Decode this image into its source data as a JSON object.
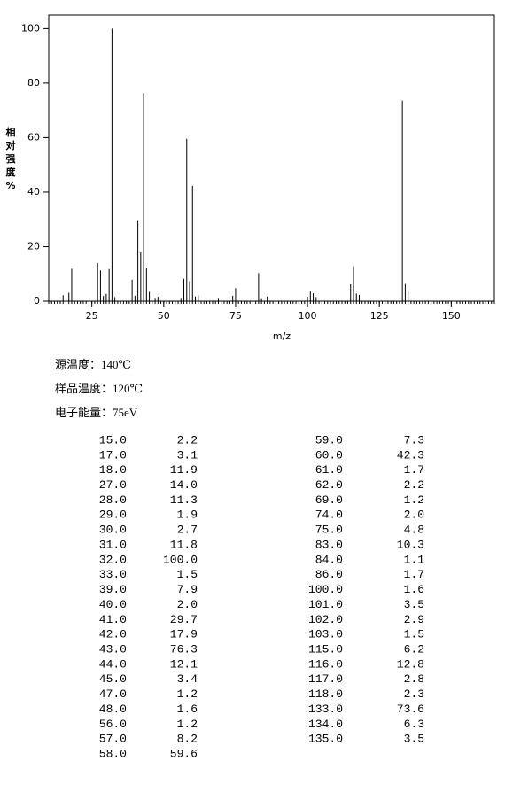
{
  "chart_data": {
    "type": "stem",
    "ylabel": "相对强度%",
    "xlabel": "m/z",
    "color": "#000000",
    "x": [
      15,
      17,
      18,
      27,
      28,
      29,
      30,
      31,
      32,
      33,
      39,
      40,
      41,
      42,
      43,
      44,
      45,
      47,
      48,
      56,
      57,
      58,
      59,
      60,
      61,
      62,
      69,
      74,
      75,
      83,
      84,
      86,
      100,
      101,
      102,
      103,
      115,
      116,
      117,
      118,
      133,
      134,
      135
    ],
    "values": [
      2.2,
      3.1,
      11.9,
      14.0,
      11.3,
      1.9,
      2.7,
      11.8,
      100.0,
      1.5,
      7.9,
      2.0,
      29.7,
      17.9,
      76.3,
      12.1,
      3.4,
      1.2,
      1.6,
      1.2,
      8.2,
      59.6,
      7.3,
      42.3,
      1.7,
      2.2,
      1.2,
      2.0,
      4.8,
      10.3,
      1.1,
      1.7,
      1.6,
      3.5,
      2.9,
      1.5,
      6.2,
      12.8,
      2.8,
      2.3,
      73.6,
      6.3,
      3.5
    ],
    "xlim": [
      10,
      165
    ],
    "ylim": [
      0,
      105
    ],
    "xticks": [
      25,
      50,
      75,
      100,
      125,
      150
    ],
    "yticks": [
      0,
      20,
      40,
      60,
      80,
      100
    ]
  },
  "conditions": [
    "源温度：140℃",
    "样品温度：120℃",
    "电子能量：75eV"
  ],
  "table": {
    "left": [
      [
        "15.0",
        "2.2"
      ],
      [
        "17.0",
        "3.1"
      ],
      [
        "18.0",
        "11.9"
      ],
      [
        "27.0",
        "14.0"
      ],
      [
        "28.0",
        "11.3"
      ],
      [
        "29.0",
        "1.9"
      ],
      [
        "30.0",
        "2.7"
      ],
      [
        "31.0",
        "11.8"
      ],
      [
        "32.0",
        "100.0"
      ],
      [
        "33.0",
        "1.5"
      ],
      [
        "39.0",
        "7.9"
      ],
      [
        "40.0",
        "2.0"
      ],
      [
        "41.0",
        "29.7"
      ],
      [
        "42.0",
        "17.9"
      ],
      [
        "43.0",
        "76.3"
      ],
      [
        "44.0",
        "12.1"
      ],
      [
        "45.0",
        "3.4"
      ],
      [
        "47.0",
        "1.2"
      ],
      [
        "48.0",
        "1.6"
      ],
      [
        "56.0",
        "1.2"
      ],
      [
        "57.0",
        "8.2"
      ],
      [
        "58.0",
        "59.6"
      ]
    ],
    "right": [
      [
        "59.0",
        "7.3"
      ],
      [
        "60.0",
        "42.3"
      ],
      [
        "61.0",
        "1.7"
      ],
      [
        "62.0",
        "2.2"
      ],
      [
        "69.0",
        "1.2"
      ],
      [
        "74.0",
        "2.0"
      ],
      [
        "75.0",
        "4.8"
      ],
      [
        "83.0",
        "10.3"
      ],
      [
        "84.0",
        "1.1"
      ],
      [
        "86.0",
        "1.7"
      ],
      [
        "100.0",
        "1.6"
      ],
      [
        "101.0",
        "3.5"
      ],
      [
        "102.0",
        "2.9"
      ],
      [
        "103.0",
        "1.5"
      ],
      [
        "115.0",
        "6.2"
      ],
      [
        "116.0",
        "12.8"
      ],
      [
        "117.0",
        "2.8"
      ],
      [
        "118.0",
        "2.3"
      ],
      [
        "133.0",
        "73.6"
      ],
      [
        "134.0",
        "6.3"
      ],
      [
        "135.0",
        "3.5"
      ]
    ]
  }
}
